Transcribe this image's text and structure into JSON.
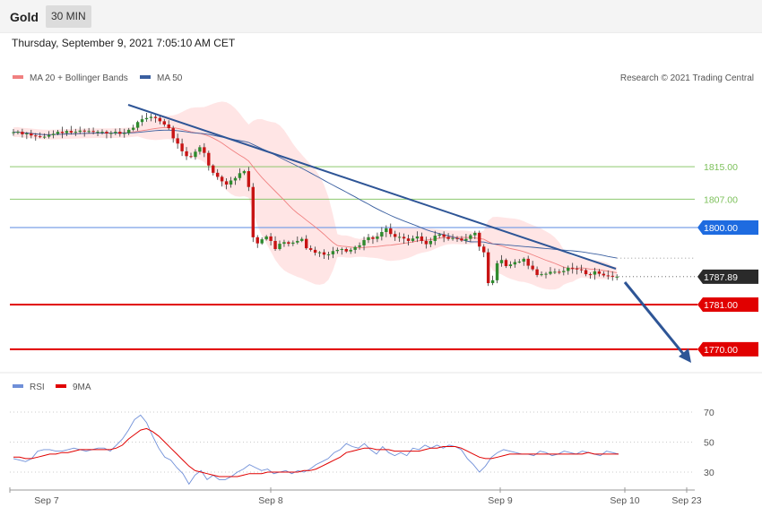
{
  "header": {
    "instrument": "Gold",
    "timeframe": "30 MIN"
  },
  "datetime": "Thursday, September 9, 2021 7:05:10 AM CET",
  "legend": {
    "ma20": "MA 20 + Bollinger Bands",
    "ma50": "MA 50",
    "rsi": "RSI",
    "rsi_ma": "9MA"
  },
  "credit": "Research © 2021 Trading Central",
  "colors": {
    "bull": "#2e8b2e",
    "bear": "#c81414",
    "ma20": "#f08080",
    "ma50": "#3a5fa0",
    "band": "#ffe0e0",
    "trend": "#2e5596",
    "resistance": "#1e6be0",
    "support": "#e10000",
    "level_green": "#7cc05a",
    "rsi": "#6f8fd8",
    "rsi_ma": "#e00000"
  },
  "chart_data": [
    {
      "type": "candlestick",
      "title": "Gold 30 MIN",
      "ylim": [
        1765,
        1835
      ],
      "x_labels": [
        "Sep 7",
        "Sep 8",
        "Sep 9",
        "Sep 10",
        "Sep 23"
      ],
      "price_levels": [
        {
          "value": 1815.0,
          "label": "1815.00",
          "kind": "green-line"
        },
        {
          "value": 1807.0,
          "label": "1807.00",
          "kind": "green-line"
        },
        {
          "value": 1800.0,
          "label": "1800.00",
          "kind": "resistance"
        },
        {
          "value": 1787.89,
          "label": "1787.89",
          "kind": "last-price"
        },
        {
          "value": 1781.0,
          "label": "1781.00",
          "kind": "support"
        },
        {
          "value": 1770.0,
          "label": "1770.00",
          "kind": "support"
        }
      ],
      "ohlc_close": [
        1823.5,
        1823.6,
        1823.0,
        1823.2,
        1822.7,
        1822.5,
        1822.4,
        1822.4,
        1822.8,
        1823.1,
        1823.6,
        1823.3,
        1823.8,
        1823.4,
        1823.6,
        1823.9,
        1823.7,
        1823.8,
        1823.6,
        1823.6,
        1823.6,
        1823.2,
        1823.3,
        1823.6,
        1823.1,
        1823.3,
        1824.1,
        1824.6,
        1826.0,
        1826.7,
        1827.0,
        1827.3,
        1827.0,
        1826.2,
        1825.4,
        1824.5,
        1822.0,
        1820.7,
        1818.8,
        1817.6,
        1817.4,
        1818.7,
        1819.8,
        1818.4,
        1815.3,
        1813.5,
        1812.5,
        1811.4,
        1810.6,
        1811.6,
        1812.2,
        1813.4,
        1813.9,
        1810.0,
        1797.6,
        1796.1,
        1797.1,
        1797.8,
        1796.7,
        1794.7,
        1796.0,
        1796.4,
        1796.0,
        1796.3,
        1796.7,
        1797.2,
        1794.9,
        1794.5,
        1793.8,
        1793.9,
        1793.3,
        1793.4,
        1794.2,
        1794.5,
        1794.7,
        1794.1,
        1794.5,
        1795.2,
        1795.6,
        1796.9,
        1797.6,
        1797.2,
        1797.8,
        1798.9,
        1799.8,
        1798.4,
        1797.7,
        1797.7,
        1797.3,
        1796.7,
        1797.3,
        1797.8,
        1796.7,
        1795.9,
        1796.7,
        1798.0,
        1798.3,
        1797.7,
        1797.2,
        1797.4,
        1797.3,
        1796.8,
        1797.2,
        1798.1,
        1798.7,
        1795.3,
        1793.9,
        1786.3,
        1787.0,
        1791.2,
        1792.0,
        1790.5,
        1790.9,
        1791.5,
        1791.6,
        1792.3,
        1790.6,
        1789.7,
        1788.3,
        1788.5,
        1788.6,
        1789.1,
        1789.1,
        1789.0,
        1789.3,
        1790.1,
        1789.9,
        1789.7,
        1789.5,
        1788.5,
        1788.4,
        1789.2,
        1788.6,
        1788.2,
        1788.1,
        1787.9,
        1787.9
      ],
      "series": [
        {
          "name": "RSI",
          "values": [
            39,
            38,
            37,
            39,
            44,
            45,
            45,
            44,
            44,
            45,
            46,
            45,
            44,
            45,
            46,
            46,
            44,
            48,
            52,
            58,
            65,
            68,
            63,
            54,
            46,
            40,
            38,
            33,
            29,
            22,
            28,
            31,
            25,
            28,
            25,
            25,
            27,
            30,
            32,
            35,
            33,
            31,
            32,
            29,
            30,
            31,
            29,
            31,
            30,
            32,
            35,
            37,
            39,
            43,
            45,
            49,
            47,
            46,
            49,
            45,
            42,
            47,
            43,
            41,
            43,
            41,
            46,
            45,
            48,
            46,
            48,
            46,
            48,
            47,
            45,
            39,
            35,
            30,
            34,
            40,
            43,
            45,
            44,
            43,
            42,
            42,
            41,
            44,
            43,
            41,
            42,
            44,
            43,
            42,
            44,
            43,
            42,
            41,
            44,
            43,
            42
          ]
        },
        {
          "name": "9MA",
          "values": [
            40,
            40,
            39,
            39,
            40,
            41,
            42,
            42,
            43,
            43,
            44,
            45,
            45,
            45,
            45,
            45,
            45,
            46,
            48,
            52,
            55,
            58,
            59,
            57,
            54,
            50,
            46,
            42,
            38,
            34,
            31,
            30,
            29,
            28,
            27,
            27,
            27,
            27,
            28,
            29,
            29,
            29,
            30,
            30,
            30,
            30,
            30,
            30,
            31,
            31,
            32,
            34,
            36,
            38,
            40,
            43,
            44,
            45,
            46,
            46,
            45,
            45,
            45,
            44,
            44,
            44,
            44,
            44,
            45,
            46,
            46,
            47,
            47,
            47,
            46,
            44,
            42,
            40,
            39,
            39,
            40,
            41,
            42,
            42,
            42,
            42,
            42,
            42,
            42,
            42,
            42,
            42,
            42,
            42,
            42,
            43,
            42,
            42,
            42,
            42,
            42
          ]
        }
      ],
      "rsi_levels": [
        "70",
        "50",
        "30"
      ]
    }
  ]
}
